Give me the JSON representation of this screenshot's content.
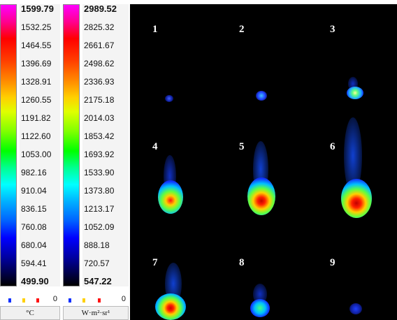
{
  "temperature_scale": {
    "ticks": [
      "1599.79",
      "1532.25",
      "1464.55",
      "1396.69",
      "1328.91",
      "1260.55",
      "1191.82",
      "1122.60",
      "1053.00",
      "982.16",
      "910.04",
      "836.15",
      "760.08",
      "680.04",
      "594.41",
      "499.90"
    ],
    "zero": "0",
    "unit": "°C"
  },
  "radiance_scale": {
    "ticks": [
      "2989.52",
      "2825.32",
      "2661.67",
      "2498.62",
      "2336.93",
      "2175.18",
      "2014.03",
      "1853.42",
      "1693.92",
      "1533.90",
      "1373.80",
      "1213.17",
      "1052.09",
      "888.18",
      "720.57",
      "547.22"
    ],
    "zero": "0",
    "unit": "W·m²·sr¹"
  },
  "frames": [
    {
      "label": "1",
      "intensity": 0.1
    },
    {
      "label": "2",
      "intensity": 0.2
    },
    {
      "label": "3",
      "intensity": 0.35
    },
    {
      "label": "4",
      "intensity": 0.7
    },
    {
      "label": "5",
      "intensity": 0.85
    },
    {
      "label": "6",
      "intensity": 0.95
    },
    {
      "label": "7",
      "intensity": 0.85
    },
    {
      "label": "8",
      "intensity": 0.4
    },
    {
      "label": "9",
      "intensity": 0.15
    }
  ],
  "colors": {
    "panel_bg": "#000000",
    "mini_blue": "#1030ff",
    "mini_yellow": "#ffd000",
    "mini_red": "#ff1010"
  }
}
